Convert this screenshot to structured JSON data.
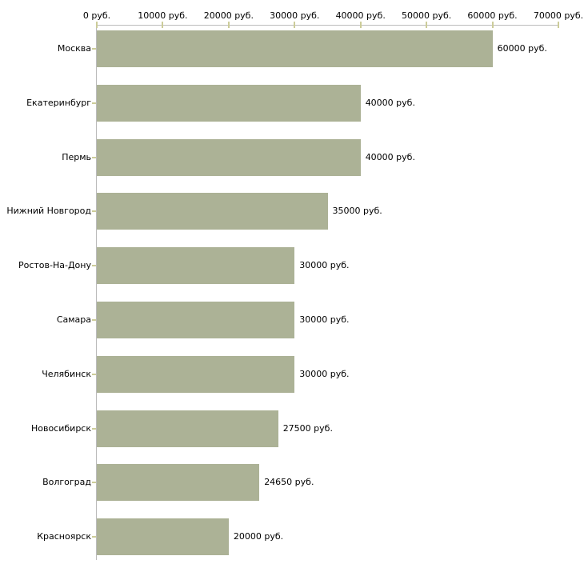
{
  "chart_data": {
    "type": "bar",
    "orientation": "horizontal",
    "title": "",
    "xlabel": "",
    "ylabel": "",
    "unit": "руб.",
    "categories": [
      "Москва",
      "Екатеринбург",
      "Пермь",
      "Нижний Новгород",
      "Ростов-На-Дону",
      "Самара",
      "Челябинск",
      "Новосибирск",
      "Волгоград",
      "Красноярск"
    ],
    "values": [
      60000,
      40000,
      40000,
      35000,
      30000,
      30000,
      30000,
      27500,
      24650,
      20000
    ],
    "value_labels": [
      "60000 руб.",
      "40000 руб.",
      "40000 руб.",
      "35000 руб.",
      "30000 руб.",
      "30000 руб.",
      "30000 руб.",
      "27500 руб.",
      "24650 руб.",
      "20000 руб."
    ],
    "xlim": [
      0,
      70000
    ],
    "x_ticks": [
      0,
      10000,
      20000,
      30000,
      40000,
      50000,
      60000,
      70000
    ],
    "x_tick_labels": [
      "0 руб.",
      "10000 руб.",
      "20000 руб.",
      "30000 руб.",
      "40000 руб.",
      "50000 руб.",
      "60000 руб.",
      "70000 руб."
    ],
    "grid": false,
    "legend": false,
    "axis_position": "top",
    "colors": {
      "bar_fill": "#ACB296",
      "axis_line": "#BBBBBB",
      "tick_mark": "#CCCC99",
      "text": "#000000",
      "background": "#FFFFFF"
    }
  }
}
